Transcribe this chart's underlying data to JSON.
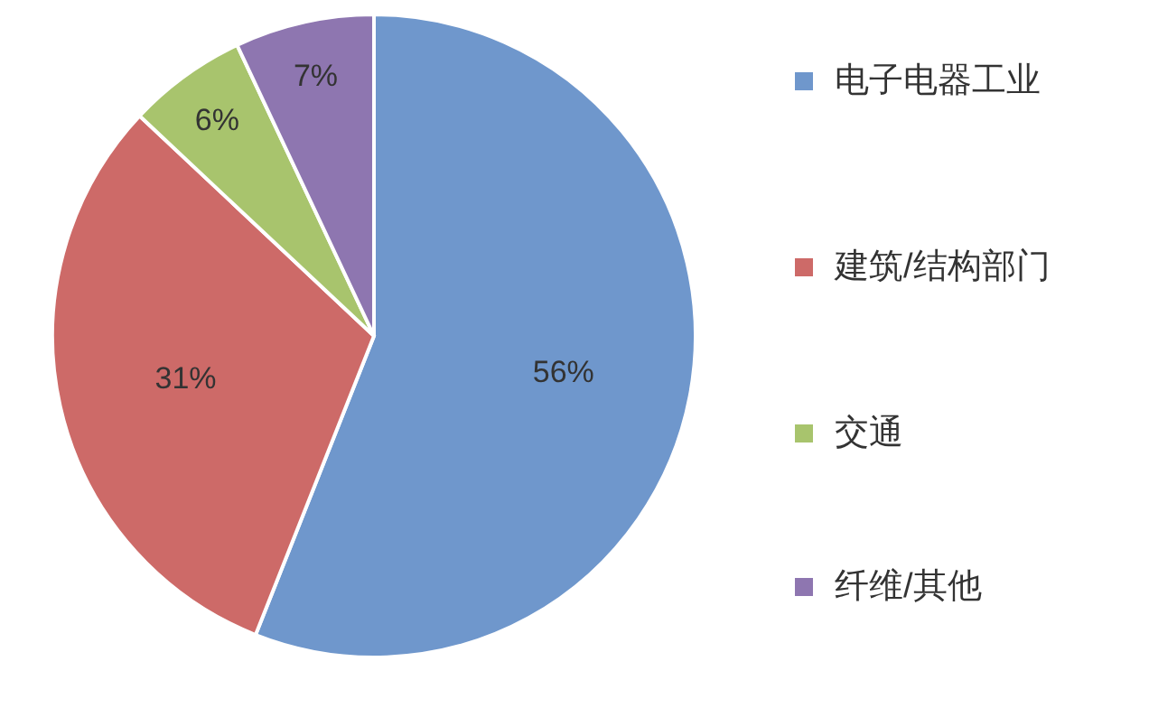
{
  "chart_data": {
    "type": "pie",
    "categories": [
      "电子电器工业",
      "建筑/结构部门",
      "交通",
      "纤维/其他"
    ],
    "values": [
      56,
      31,
      6,
      7
    ],
    "colors": [
      "#6f97cc",
      "#cd6a68",
      "#a8c46d",
      "#8e76b0"
    ],
    "value_labels": [
      "56%",
      "31%",
      "6%",
      "7%"
    ],
    "legend": "right"
  }
}
